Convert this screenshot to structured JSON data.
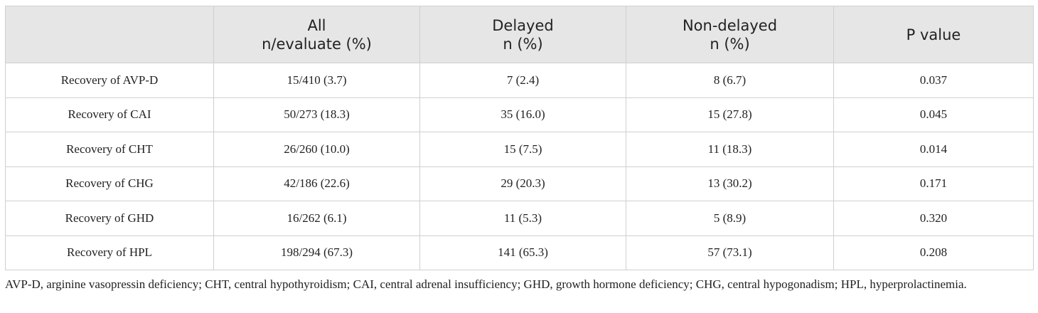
{
  "table": {
    "columns": [
      {
        "lines": [
          "All",
          "n/evaluate (%)"
        ]
      },
      {
        "lines": [
          "Delayed",
          "n (%)"
        ]
      },
      {
        "lines": [
          "Non-delayed",
          "n (%)"
        ]
      },
      {
        "lines": [
          "P value"
        ]
      }
    ],
    "rows": [
      [
        "Recovery of AVP-D",
        "15/410 (3.7)",
        "7 (2.4)",
        "8 (6.7)",
        "0.037"
      ],
      [
        "Recovery of CAI",
        "50/273 (18.3)",
        "35 (16.0)",
        "15 (27.8)",
        "0.045"
      ],
      [
        "Recovery of CHT",
        "26/260 (10.0)",
        "15 (7.5)",
        "11 (18.3)",
        "0.014"
      ],
      [
        "Recovery of CHG",
        "42/186 (22.6)",
        "29 (20.3)",
        "13 (30.2)",
        "0.171"
      ],
      [
        "Recovery of GHD",
        "16/262 (6.1)",
        "11 (5.3)",
        "5 (8.9)",
        "0.320"
      ],
      [
        "Recovery of HPL",
        "198/294 (67.3)",
        "141 (65.3)",
        "57 (73.1)",
        "0.208"
      ]
    ]
  },
  "footnote": "AVP-D, arginine vasopressin deficiency; CHT, central hypothyroidism; CAI, central adrenal insufficiency; GHD, growth hormone deficiency; CHG, central hypogonadism; HPL, hyperprolactinemia."
}
